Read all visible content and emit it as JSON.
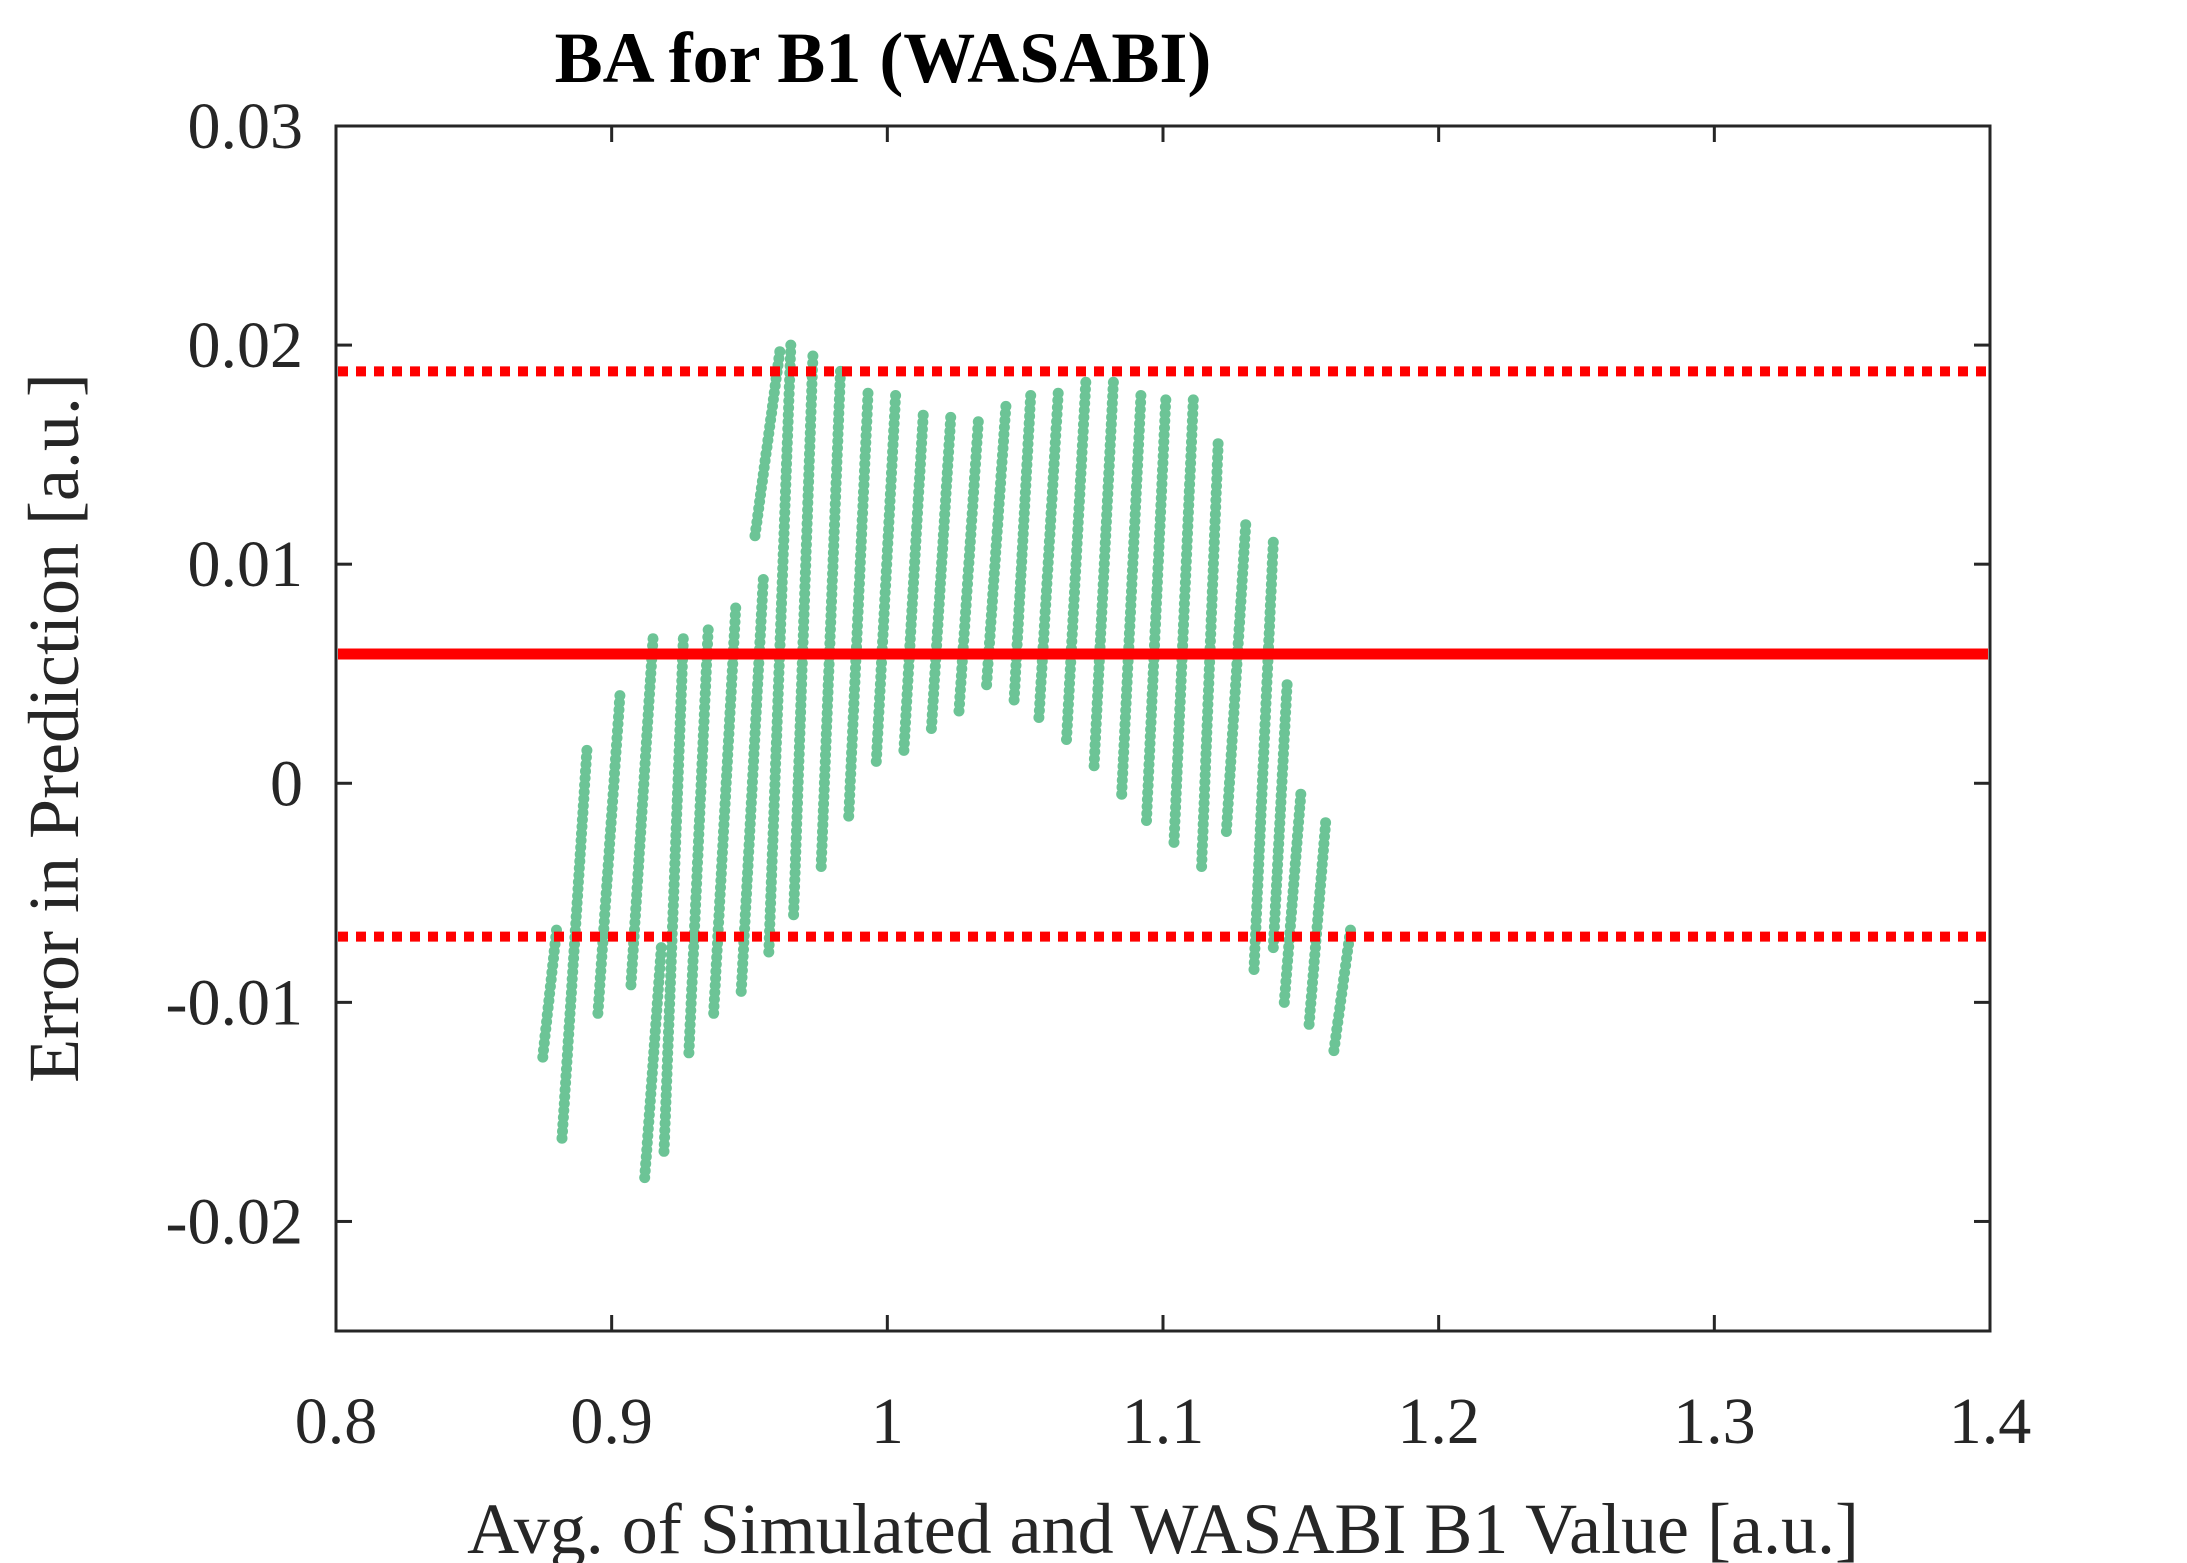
{
  "chart_data": {
    "type": "scatter",
    "title": "BA for B1 (WASABI)",
    "xlabel": "Avg. of Simulated and WASABI B1 Value [a.u.]",
    "ylabel": "Error in Prediction [a.u.]",
    "xlim": [
      0.8,
      1.4
    ],
    "ylim": [
      -0.025,
      0.03
    ],
    "xticks": [
      0.8,
      0.9,
      1.0,
      1.1,
      1.2,
      1.3,
      1.4
    ],
    "xtick_labels": [
      "0.8",
      "0.9",
      "1",
      "1.1",
      "1.2",
      "1.3",
      "1.4"
    ],
    "yticks": [
      -0.02,
      -0.01,
      0,
      0.01,
      0.02,
      0.03
    ],
    "ytick_labels": [
      "-0.02",
      "-0.01",
      "0",
      "0.01",
      "0.02",
      "0.03"
    ],
    "grid": false,
    "point_color": "#6cc496",
    "line_color": "#ff0000",
    "reference_lines": [
      {
        "y": 0.0059,
        "style": "solid"
      },
      {
        "y": 0.0188,
        "style": "dotted"
      },
      {
        "y": -0.007,
        "style": "dotted"
      }
    ],
    "point_strands": [
      {
        "x_start": 0.875,
        "x_end": 0.88,
        "y_start": -0.0125,
        "y_end": -0.0067
      },
      {
        "x_start": 0.882,
        "x_end": 0.891,
        "y_start": -0.0162,
        "y_end": 0.0015
      },
      {
        "x_start": 0.895,
        "x_end": 0.903,
        "y_start": -0.0105,
        "y_end": 0.004
      },
      {
        "x_start": 0.907,
        "x_end": 0.915,
        "y_start": -0.0092,
        "y_end": 0.0066
      },
      {
        "x_start": 0.912,
        "x_end": 0.918,
        "y_start": -0.018,
        "y_end": -0.0075
      },
      {
        "x_start": 0.919,
        "x_end": 0.926,
        "y_start": -0.0168,
        "y_end": 0.0066
      },
      {
        "x_start": 0.928,
        "x_end": 0.935,
        "y_start": -0.0123,
        "y_end": 0.007
      },
      {
        "x_start": 0.937,
        "x_end": 0.945,
        "y_start": -0.0105,
        "y_end": 0.008
      },
      {
        "x_start": 0.947,
        "x_end": 0.955,
        "y_start": -0.0095,
        "y_end": 0.0093
      },
      {
        "x_start": 0.952,
        "x_end": 0.961,
        "y_start": 0.0113,
        "y_end": 0.0197
      },
      {
        "x_start": 0.957,
        "x_end": 0.965,
        "y_start": -0.0077,
        "y_end": 0.02
      },
      {
        "x_start": 0.966,
        "x_end": 0.973,
        "y_start": -0.006,
        "y_end": 0.0195
      },
      {
        "x_start": 0.976,
        "x_end": 0.983,
        "y_start": -0.0038,
        "y_end": 0.0188
      },
      {
        "x_start": 0.986,
        "x_end": 0.993,
        "y_start": -0.0015,
        "y_end": 0.0178
      },
      {
        "x_start": 0.996,
        "x_end": 1.003,
        "y_start": 0.001,
        "y_end": 0.0177
      },
      {
        "x_start": 1.006,
        "x_end": 1.013,
        "y_start": 0.0015,
        "y_end": 0.0168
      },
      {
        "x_start": 1.016,
        "x_end": 1.023,
        "y_start": 0.0025,
        "y_end": 0.0167
      },
      {
        "x_start": 1.026,
        "x_end": 1.033,
        "y_start": 0.0033,
        "y_end": 0.0165
      },
      {
        "x_start": 1.036,
        "x_end": 1.043,
        "y_start": 0.0045,
        "y_end": 0.0172
      },
      {
        "x_start": 1.046,
        "x_end": 1.052,
        "y_start": 0.0038,
        "y_end": 0.0177
      },
      {
        "x_start": 1.055,
        "x_end": 1.062,
        "y_start": 0.003,
        "y_end": 0.0178
      },
      {
        "x_start": 1.065,
        "x_end": 1.072,
        "y_start": 0.002,
        "y_end": 0.0183
      },
      {
        "x_start": 1.075,
        "x_end": 1.082,
        "y_start": 0.0008,
        "y_end": 0.0183
      },
      {
        "x_start": 1.085,
        "x_end": 1.092,
        "y_start": -0.0005,
        "y_end": 0.0177
      },
      {
        "x_start": 1.094,
        "x_end": 1.101,
        "y_start": -0.0017,
        "y_end": 0.0175
      },
      {
        "x_start": 1.104,
        "x_end": 1.111,
        "y_start": -0.0027,
        "y_end": 0.0175
      },
      {
        "x_start": 1.114,
        "x_end": 1.12,
        "y_start": -0.0038,
        "y_end": 0.0155
      },
      {
        "x_start": 1.123,
        "x_end": 1.13,
        "y_start": -0.0022,
        "y_end": 0.0118
      },
      {
        "x_start": 1.133,
        "x_end": 1.14,
        "y_start": -0.0085,
        "y_end": 0.011
      },
      {
        "x_start": 1.14,
        "x_end": 1.145,
        "y_start": -0.0075,
        "y_end": 0.0045
      },
      {
        "x_start": 1.144,
        "x_end": 1.15,
        "y_start": -0.01,
        "y_end": -0.0005
      },
      {
        "x_start": 1.153,
        "x_end": 1.159,
        "y_start": -0.011,
        "y_end": -0.0018
      },
      {
        "x_start": 1.162,
        "x_end": 1.168,
        "y_start": -0.0122,
        "y_end": -0.0067
      }
    ]
  }
}
